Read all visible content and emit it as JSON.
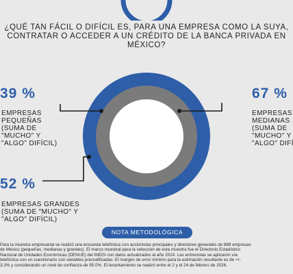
{
  "title": {
    "line1": "¿QUÉ TAN FÁCIL O DIFÍCIL ES, PARA UNA EMPRESA COMO LA SUYA,",
    "line2": "CONTRATAR O ACCEDER A UN CRÉDITO DE LA BANCA PRIVADA EN",
    "line3": "MÉXICO?"
  },
  "chart_data": {
    "type": "donut",
    "series": [
      {
        "value_label": "39 %",
        "value": 39,
        "label_lines": [
          "EMPRESAS",
          "PEQUEÑAS",
          "(SUMA DE",
          "\"MUCHO\" Y",
          "\"ALGO\" DIFÍCIL)"
        ],
        "color": "#7b7b7b"
      },
      {
        "value_label": "67 %",
        "value": 67,
        "label_lines": [
          "EMPRESAS",
          "MEDIANAS",
          "(SUMA DE",
          "\"MUCHO\" Y",
          "\"ALGO\" DIFÍCIL)"
        ],
        "color": "#ffffff"
      },
      {
        "value_label": "52 %",
        "value": 52,
        "label_lines": [
          "EMPRESAS GRANDES",
          "(SUMA DE \"MUCHO\" Y",
          "\"ALGO\" DIFÍCIL)"
        ],
        "color": "#2e5ea8"
      }
    ]
  },
  "colors": {
    "accent": "#2e5ea8",
    "ring_gray": "#7b7b7b",
    "background": "#e9e9e9"
  },
  "note": {
    "badge": "NOTA METODOLÓGICA",
    "lines": [
      "Para la muestra empresarial se realizó una encuesta telefónica con accionistas principales y directores generales de 889 empresas",
      "de México (pequeñas, medianas y grandes). El marco muestral para la selección de esta muestra fue el Directorio Estadístico",
      "Nacional de Unidades Económicas (DENUE) del INEGI con datos actualizados al año 2024. Las entrevistas se aplicaron vía",
      "telefónica con un cuestionario con variables precodificadas. El margen de error mínimo para la estimación resultante es de +/-",
      "3.3% y considerando un nivel de confianza de 95.0%. El levantamiento se realizó entre el 2 y el 24 de febrero de 2026."
    ]
  }
}
